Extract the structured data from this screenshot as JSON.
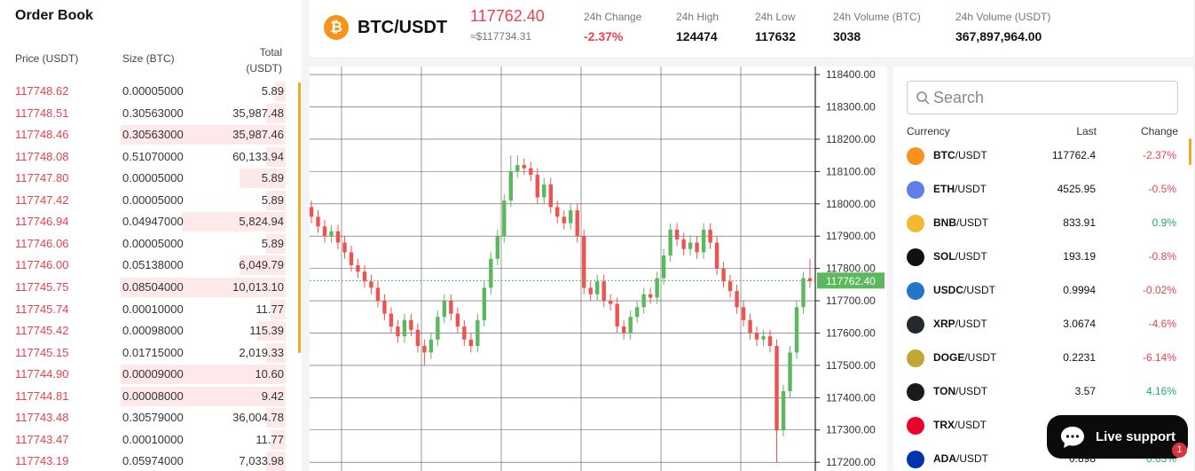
{
  "order_book": {
    "title": "Order Book",
    "headers": [
      "Price (USDT)",
      "Size (BTC)",
      "Total (USDT)"
    ],
    "rows": [
      [
        "117748.62",
        "0.00005000",
        "5.89"
      ],
      [
        "117748.51",
        "0.30563000",
        "35,987.48"
      ],
      [
        "117748.46",
        "0.30563000",
        "35,987.46"
      ],
      [
        "117748.08",
        "0.51070000",
        "60,133.94"
      ],
      [
        "117747.80",
        "0.00005000",
        "5.89"
      ],
      [
        "117747.42",
        "0.00005000",
        "5.89"
      ],
      [
        "117746.94",
        "0.04947000",
        "5,824.94"
      ],
      [
        "117746.06",
        "0.00005000",
        "5.89"
      ],
      [
        "117746.00",
        "0.05138000",
        "6,049.79"
      ],
      [
        "117745.75",
        "0.08504000",
        "10,013.10"
      ],
      [
        "117745.74",
        "0.00010000",
        "11.77"
      ],
      [
        "117745.42",
        "0.00098000",
        "115.39"
      ],
      [
        "117745.15",
        "0.01715000",
        "2,019.33"
      ],
      [
        "117744.90",
        "0.00009000",
        "10.60"
      ],
      [
        "117744.81",
        "0.00008000",
        "9.42"
      ],
      [
        "117743.48",
        "0.30579000",
        "36,004.78"
      ],
      [
        "117743.47",
        "0.00010000",
        "11.77"
      ],
      [
        "117743.19",
        "0.05974000",
        "7,033.98"
      ]
    ]
  },
  "ticker": {
    "pair": "BTC/USDT",
    "price": "117762.40",
    "approx": "≈$117734.31",
    "stats": [
      {
        "label": "24h Change",
        "value": "-2.37%"
      },
      {
        "label": "24h High",
        "value": "124474"
      },
      {
        "label": "24h Low",
        "value": "117632"
      },
      {
        "label": "24h Volume (BTC)",
        "value": "3038"
      },
      {
        "label": "24h Volume (USDT)",
        "value": "367,897,964.00"
      }
    ]
  },
  "chart_data": {
    "type": "candlestick",
    "ylim": [
      117173,
      118425
    ],
    "yticks": [
      {
        "value": 118400,
        "label": "118400.00"
      },
      {
        "value": 118300,
        "label": "118300.00"
      },
      {
        "value": 118200,
        "label": "118200.00"
      },
      {
        "value": 118100,
        "label": "118100.00"
      },
      {
        "value": 118000,
        "label": "118000.00"
      },
      {
        "value": 117900,
        "label": "117900.00"
      },
      {
        "value": 117800,
        "label": "117800.00"
      },
      {
        "value": 117700,
        "label": "117700.00"
      },
      {
        "value": 117600,
        "label": "117600.00"
      },
      {
        "value": 117500,
        "label": "117500.00"
      },
      {
        "value": 117400,
        "label": "117400.00"
      },
      {
        "value": 117300,
        "label": "117300.00"
      },
      {
        "value": 117200,
        "label": "117200.00"
      }
    ],
    "last_price": {
      "value": 117762.4,
      "label": "117762.40"
    },
    "up_color": "#5cb85c",
    "down_color": "#ef5350",
    "grid": true,
    "open": [
      117990,
      117960,
      117930,
      117900,
      117915,
      117880,
      117850,
      117810,
      117790,
      117760,
      117740,
      117700,
      117660,
      117620,
      117590,
      117640,
      117610,
      117560,
      117540,
      117580,
      117650,
      117700,
      117660,
      117620,
      117580,
      117560,
      117640,
      117740,
      117830,
      117900,
      118010,
      118100,
      118120,
      118110,
      118090,
      118020,
      118060,
      117990,
      117960,
      117940,
      117980,
      117900,
      117740,
      117720,
      117760,
      117700,
      117690,
      117620,
      117600,
      117650,
      117680,
      117720,
      117710,
      117770,
      117840,
      117920,
      117890,
      117860,
      117880,
      117850,
      117920,
      117880,
      117800,
      117760,
      117730,
      117680,
      117640,
      117600,
      117580,
      117590,
      117560,
      117300,
      117420,
      117540,
      117680,
      117770
    ],
    "high": [
      118010,
      117980,
      117950,
      117935,
      117935,
      117900,
      117870,
      117830,
      117810,
      117780,
      117760,
      117720,
      117680,
      117640,
      117660,
      117660,
      117630,
      117580,
      117600,
      117670,
      117720,
      117720,
      117680,
      117640,
      117600,
      117660,
      117760,
      117850,
      117920,
      118030,
      118150,
      118150,
      118140,
      118130,
      118110,
      118080,
      118080,
      118010,
      117980,
      118000,
      118000,
      117920,
      117760,
      117780,
      117780,
      117720,
      117710,
      117640,
      117670,
      117700,
      117740,
      117740,
      117790,
      117860,
      117940,
      117940,
      117910,
      117900,
      117900,
      117940,
      117940,
      117900,
      117820,
      117780,
      117750,
      117700,
      117660,
      117620,
      117610,
      117610,
      117580,
      117440,
      117560,
      117700,
      117790,
      117830
    ],
    "low": [
      117940,
      117910,
      117880,
      117880,
      117860,
      117830,
      117790,
      117770,
      117740,
      117720,
      117680,
      117640,
      117600,
      117570,
      117570,
      117590,
      117540,
      117500,
      117520,
      117560,
      117630,
      117640,
      117600,
      117560,
      117540,
      117540,
      117620,
      117720,
      117810,
      117880,
      117990,
      118080,
      118090,
      118070,
      118000,
      118000,
      117970,
      117940,
      117920,
      117920,
      117880,
      117720,
      117700,
      117700,
      117680,
      117670,
      117600,
      117580,
      117580,
      117630,
      117660,
      117690,
      117690,
      117750,
      117820,
      117870,
      117840,
      117840,
      117830,
      117830,
      117860,
      117780,
      117740,
      117710,
      117660,
      117620,
      117580,
      117560,
      117560,
      117540,
      117200,
      117280,
      117400,
      117520,
      117660,
      117740
    ],
    "close": [
      117960,
      117930,
      117900,
      117915,
      117880,
      117850,
      117810,
      117790,
      117760,
      117740,
      117700,
      117660,
      117620,
      117590,
      117640,
      117610,
      117560,
      117540,
      117580,
      117650,
      117700,
      117660,
      117620,
      117580,
      117560,
      117640,
      117740,
      117830,
      117900,
      118010,
      118100,
      118120,
      118110,
      118090,
      118020,
      118060,
      117990,
      117960,
      117940,
      117980,
      117900,
      117740,
      117720,
      117760,
      117700,
      117690,
      117620,
      117600,
      117650,
      117680,
      117720,
      117710,
      117770,
      117840,
      117920,
      117890,
      117860,
      117880,
      117850,
      117920,
      117880,
      117800,
      117760,
      117730,
      117680,
      117640,
      117600,
      117580,
      117590,
      117560,
      117300,
      117420,
      117540,
      117680,
      117770,
      117760
    ]
  },
  "market": {
    "search_placeholder": "Search",
    "headers": [
      "Currency",
      "Last",
      "Change"
    ],
    "rows": [
      {
        "base": "BTC",
        "quote": "/USDT",
        "last": "117762.4",
        "change": "-2.37%"
      },
      {
        "base": "ETH",
        "quote": "/USDT",
        "last": "4525.95",
        "change": "-0.5%"
      },
      {
        "base": "BNB",
        "quote": "/USDT",
        "last": "833.91",
        "change": "0.9%"
      },
      {
        "base": "SOL",
        "quote": "/USDT",
        "last": "193.19",
        "change": "-0.8%"
      },
      {
        "base": "USDC",
        "quote": "/USDT",
        "last": "0.9994",
        "change": "-0.02%"
      },
      {
        "base": "XRP",
        "quote": "/USDT",
        "last": "3.0674",
        "change": "-4.6%"
      },
      {
        "base": "DOGE",
        "quote": "/USDT",
        "last": "0.2231",
        "change": "-6.14%"
      },
      {
        "base": "TON",
        "quote": "/USDT",
        "last": "3.57",
        "change": "4.16%"
      },
      {
        "base": "TRX",
        "quote": "/USDT"
      },
      {
        "base": "ADA",
        "quote": "/USDT",
        "last": "0.898",
        "change": "0.63%"
      }
    ]
  },
  "live_support": {
    "label": "Live support",
    "badge": "1"
  }
}
